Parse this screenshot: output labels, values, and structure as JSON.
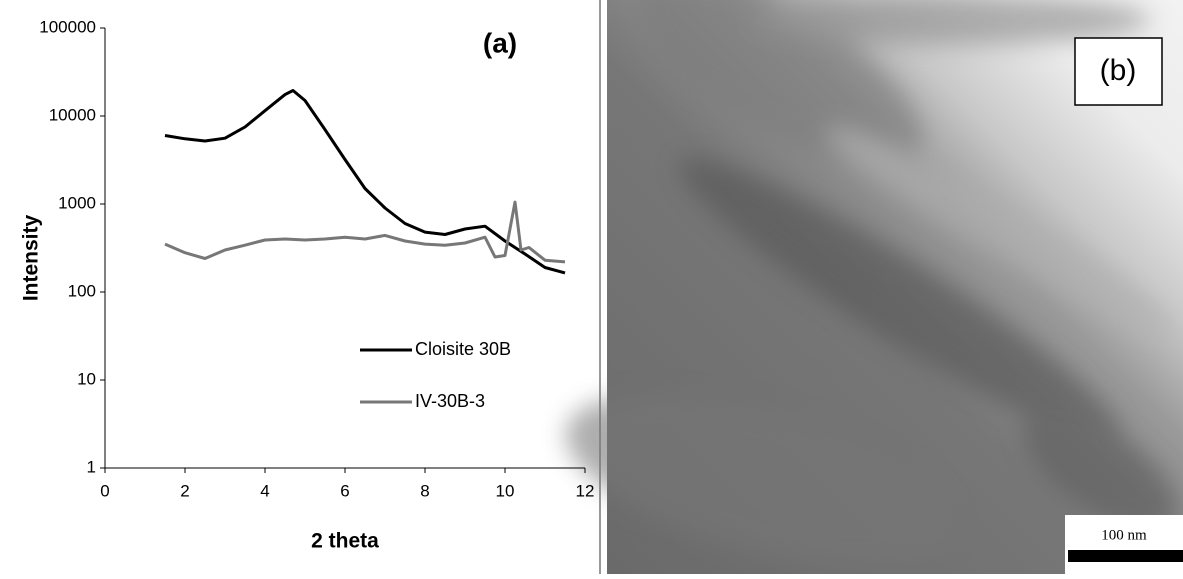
{
  "chart_data": {
    "type": "line",
    "panel_label": "(a)",
    "xlabel": "2 theta",
    "ylabel": "Intensity",
    "y_scale": "log",
    "xlim": [
      0,
      12
    ],
    "ylim": [
      1,
      100000
    ],
    "xticks": [
      0,
      2,
      4,
      6,
      8,
      10,
      12
    ],
    "yticks": [
      1,
      10,
      100,
      1000,
      10000,
      100000
    ],
    "series": [
      {
        "name": "Cloisite 30B",
        "color": "#000000",
        "x": [
          1.5,
          2,
          2.5,
          3,
          3.5,
          4,
          4.5,
          4.7,
          5,
          5.5,
          6,
          6.5,
          7,
          7.5,
          8,
          8.5,
          9,
          9.5,
          10,
          10.5,
          11,
          11.5
        ],
        "values": [
          6000,
          5500,
          5200,
          5600,
          7500,
          11500,
          17500,
          19500,
          15000,
          7000,
          3200,
          1500,
          900,
          600,
          480,
          450,
          520,
          560,
          380,
          270,
          190,
          165
        ]
      },
      {
        "name": "IV-30B-3",
        "color": "#777777",
        "x": [
          1.5,
          2,
          2.5,
          3,
          3.5,
          4,
          4.5,
          5,
          5.5,
          6,
          6.5,
          7,
          7.5,
          8,
          8.5,
          9,
          9.5,
          9.75,
          10,
          10.25,
          10.4,
          10.6,
          11,
          11.5
        ],
        "values": [
          350,
          280,
          240,
          300,
          340,
          390,
          400,
          390,
          400,
          420,
          400,
          440,
          380,
          350,
          340,
          360,
          420,
          250,
          260,
          1050,
          300,
          320,
          230,
          220
        ]
      }
    ]
  },
  "image_panel": {
    "label": "(b)",
    "scale_bar": "100 nm"
  }
}
